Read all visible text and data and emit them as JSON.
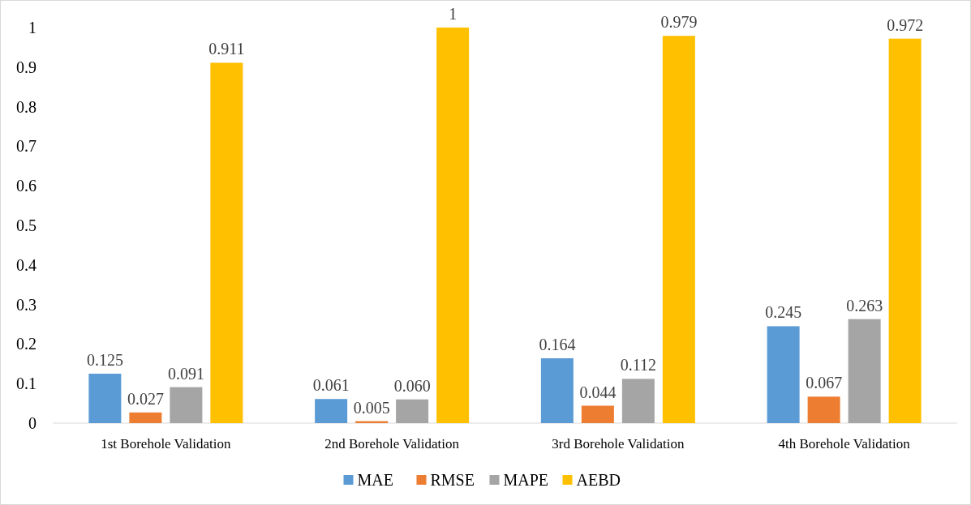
{
  "chart_data": {
    "type": "bar",
    "categories": [
      "1st Borehole Validation",
      "2nd Borehole Validation",
      "3rd Borehole Validation",
      "4th Borehole Validation"
    ],
    "series": [
      {
        "name": "MAE",
        "color": "#5b9bd5",
        "values": [
          0.125,
          0.061,
          0.164,
          0.245
        ],
        "value_labels": [
          "0.125",
          "0.061",
          "0.164",
          "0.245"
        ]
      },
      {
        "name": "RMSE",
        "color": "#ed7d31",
        "values": [
          0.027,
          0.005,
          0.044,
          0.067
        ],
        "value_labels": [
          "0.027",
          "0.005",
          "0.044",
          "0.067"
        ]
      },
      {
        "name": "MAPE",
        "color": "#a5a5a5",
        "values": [
          0.091,
          0.06,
          0.112,
          0.263
        ],
        "value_labels": [
          "0.091",
          "0.060",
          "0.112",
          "0.263"
        ]
      },
      {
        "name": "AEBD",
        "color": "#ffc000",
        "values": [
          0.911,
          1,
          0.979,
          0.972
        ],
        "value_labels": [
          "0.911",
          "1",
          "0.979",
          "0.972"
        ]
      }
    ],
    "ylim": [
      0,
      1
    ],
    "yticks": [
      0,
      0.1,
      0.2,
      0.3,
      0.4,
      0.5,
      0.6,
      0.7,
      0.8,
      0.9,
      1
    ],
    "grid": false,
    "legend": "bottom"
  }
}
